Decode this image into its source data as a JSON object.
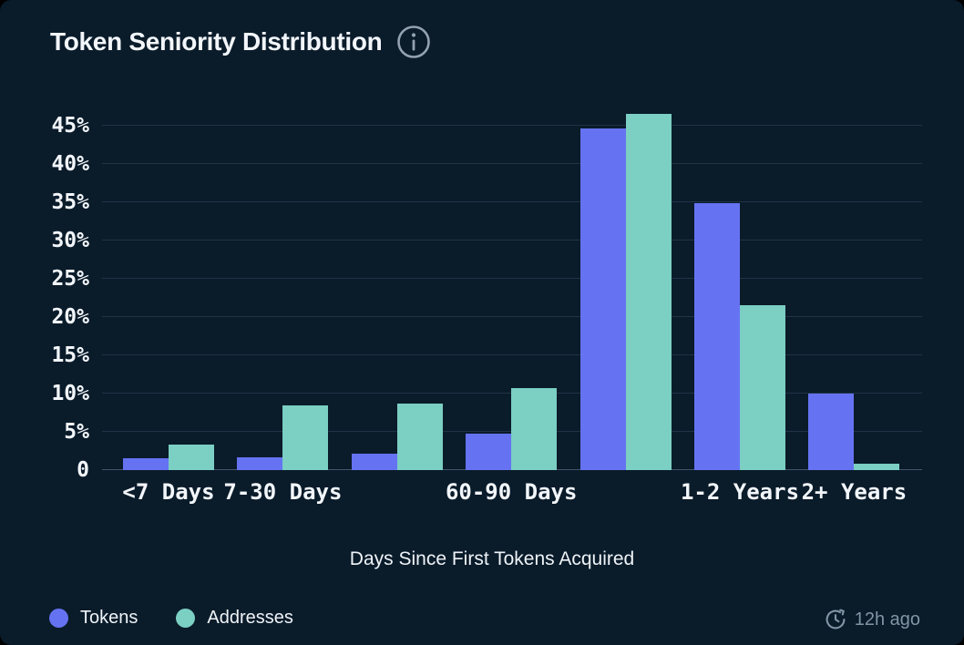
{
  "card": {
    "title": "Token Seniority Distribution",
    "updated": "12h ago"
  },
  "colors": {
    "outer_background": "#000000",
    "card_background": "#0a1b2a",
    "gridline": "#203447",
    "axis_line": "#41566b",
    "text_primary": "#f2f6fa",
    "text_muted": "#8095a6",
    "tokens": "#6573f2",
    "addresses": "#7bcfc3"
  },
  "chart_data": {
    "type": "bar",
    "title": "Token Seniority Distribution",
    "xlabel": "Days Since First Tokens Acquired",
    "ylabel": "",
    "categories": [
      "<7 Days",
      "7-30 Days",
      "",
      "60-90 Days",
      "",
      "1-2 Years",
      "2+ Years"
    ],
    "series": [
      {
        "name": "Tokens",
        "color": "#6573f2",
        "values": [
          1.5,
          1.7,
          2.2,
          4.8,
          44.6,
          34.9,
          10.0
        ]
      },
      {
        "name": "Addresses",
        "color": "#7bcfc3",
        "values": [
          3.3,
          8.5,
          8.7,
          10.7,
          46.5,
          21.5,
          0.8
        ]
      }
    ],
    "y_ticks": [
      {
        "value": 0,
        "label": "0"
      },
      {
        "value": 5,
        "label": "5%"
      },
      {
        "value": 10,
        "label": "10%"
      },
      {
        "value": 15,
        "label": "15%"
      },
      {
        "value": 20,
        "label": "20%"
      },
      {
        "value": 25,
        "label": "25%"
      },
      {
        "value": 30,
        "label": "30%"
      },
      {
        "value": 35,
        "label": "35%"
      },
      {
        "value": 40,
        "label": "40%"
      },
      {
        "value": 45,
        "label": "45%"
      }
    ],
    "ylim": [
      0,
      47.5
    ],
    "grid": true,
    "legend_position": "bottom-left"
  }
}
